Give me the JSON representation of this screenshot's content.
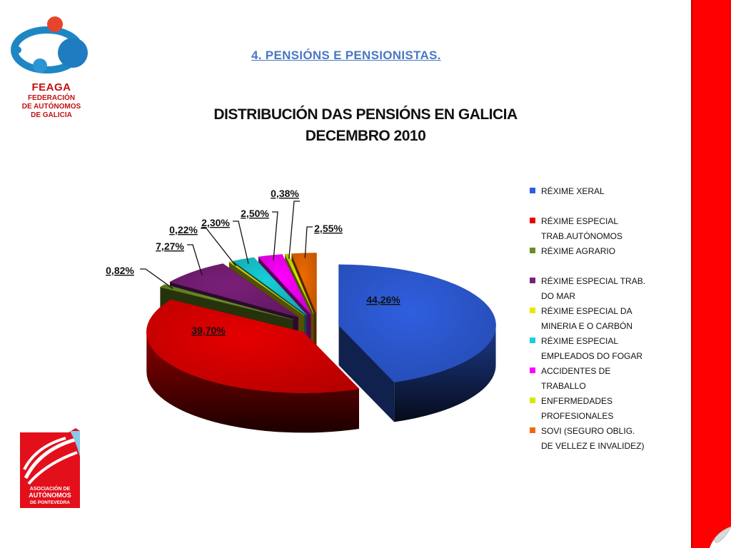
{
  "slide": {
    "title": "4. PENSIÓNS E PENSIONISTAS.",
    "feaga_name": "FEAGA",
    "feaga_sub": [
      "FEDERACIÓN",
      "DE AUTÓNOMOS",
      "DE GALICIA"
    ],
    "apa_lines": [
      "ASOCIACIÓN DE",
      "AUTÓNOMOS",
      "DE PONTEVEDRA"
    ]
  },
  "chart_data": {
    "type": "pie",
    "title": [
      "DISTRIBUCIÓN DAS PENSIÓNS EN GALICIA",
      "DECEMBRO 2010"
    ],
    "legend_position": "right",
    "slices": [
      {
        "label": [
          "RÉXIME XERAL"
        ],
        "value": 44.26,
        "value_label": "44,26%",
        "color": "#2f5fe0"
      },
      {
        "label": [
          "RÉXIME ESPECIAL",
          "TRAB.AUTÓNOMOS"
        ],
        "value": 39.7,
        "value_label": "39,70%",
        "color": "#e60000"
      },
      {
        "label": [
          "RÉXIME AGRARIO"
        ],
        "value": 0.82,
        "value_label": "0,82%",
        "color": "#6b8e23"
      },
      {
        "label": [
          "RÉXIME ESPECIAL TRAB.",
          "DO MAR"
        ],
        "value": 7.27,
        "value_label": "7,27%",
        "color": "#7a1f7a"
      },
      {
        "label": [
          "RÉXIME ESPECIAL DA",
          "MINERIA E O CARBÓN"
        ],
        "value": 0.22,
        "value_label": "0,22%",
        "color": "#e8e800"
      },
      {
        "label": [
          "RÉXIME ESPECIAL",
          "EMPLEADOS DO FOGAR"
        ],
        "value": 2.3,
        "value_label": "2,30%",
        "color": "#17d0d8"
      },
      {
        "label": [
          "ACCIDENTES DE",
          "TRABALLO"
        ],
        "value": 2.5,
        "value_label": "2,50%",
        "color": "#ff00ff"
      },
      {
        "label": [
          "ENFERMEDADES",
          "PROFESIONALES"
        ],
        "value": 0.38,
        "value_label": "0,38%",
        "color": "#d8e800"
      },
      {
        "label": [
          "SOVI (SEGURO OBLIG.",
          "DE VELLEZ E INVALIDEZ)"
        ],
        "value": 2.55,
        "value_label": "2,55%",
        "color": "#f06a00"
      }
    ]
  }
}
